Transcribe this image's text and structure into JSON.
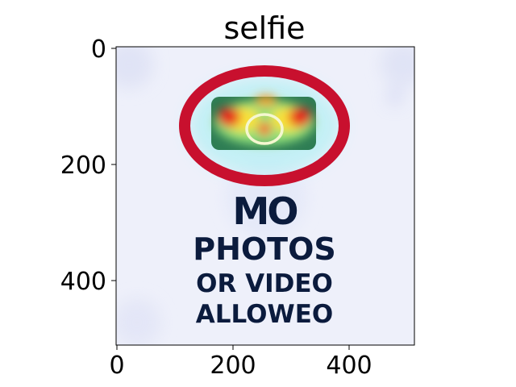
{
  "figure": {
    "title": "selfie",
    "x_ticks": [
      "0",
      "200",
      "400"
    ],
    "y_ticks": [
      "0",
      "200",
      "400"
    ],
    "image_text": {
      "line1": "MO",
      "line2": "PHOTOS",
      "line3": "OR VIDEO",
      "line4": "ALLOWEO"
    },
    "colors": {
      "sign_ring": "#c8102e",
      "sign_text": "#0b1b3d",
      "heat_hot": "#e8201a",
      "heat_warm": "#f7e23a",
      "heat_cool": "#7fe0f0",
      "background_tint": "#e9ecf8"
    }
  }
}
